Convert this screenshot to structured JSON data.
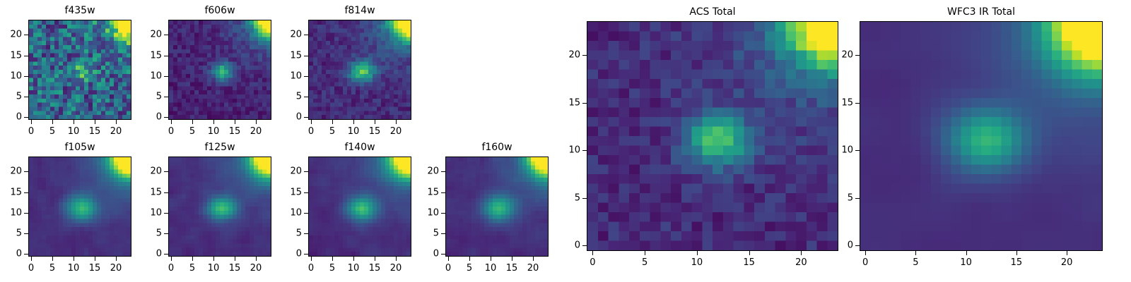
{
  "chart_data": {
    "type": "heatmap",
    "colormap": "viridis",
    "grid_size": 24,
    "x_range": [
      -0.5,
      23.5
    ],
    "y_range": [
      -0.5,
      23.5
    ],
    "x_ticks": [
      0,
      5,
      10,
      15,
      20
    ],
    "y_ticks": [
      0,
      5,
      10,
      15,
      20
    ],
    "source_center": {
      "x": 12,
      "y": 11
    },
    "corner_source": {
      "x": 23,
      "y": 23
    },
    "description": "HST galaxy cutout stamps: central compact source at (12,11) plus bright neighbor in the top-right corner, shown in seven filters and two summed (Total) images",
    "panels": [
      {
        "title": "f435w",
        "seed": 11,
        "base": 0.33,
        "noise": 0.26,
        "smooth": 0,
        "source": {
          "amp": 0.3,
          "sx": 2.0,
          "sy": 1.7
        },
        "corner": {
          "amp": 1.25,
          "sigma": 2.8
        },
        "halo": {
          "amp": 0.15,
          "sigma": 7.0
        }
      },
      {
        "title": "f606w",
        "seed": 22,
        "base": 0.1,
        "noise": 0.08,
        "smooth": 0,
        "source": {
          "amp": 0.58,
          "sx": 1.7,
          "sy": 1.5
        },
        "corner": {
          "amp": 1.15,
          "sigma": 2.7
        },
        "halo": {
          "amp": 0.2,
          "sigma": 7.0
        }
      },
      {
        "title": "f814w",
        "seed": 33,
        "base": 0.12,
        "noise": 0.08,
        "smooth": 0,
        "source": {
          "amp": 0.62,
          "sx": 2.1,
          "sy": 1.8
        },
        "corner": {
          "amp": 1.25,
          "sigma": 3.0
        },
        "halo": {
          "amp": 0.22,
          "sigma": 7.5
        }
      },
      {
        "title": "f105w",
        "seed": 44,
        "base": 0.13,
        "noise": 0.07,
        "smooth": 1,
        "source": {
          "amp": 0.52,
          "sx": 2.6,
          "sy": 2.2
        },
        "corner": {
          "amp": 1.2,
          "sigma": 3.3
        },
        "halo": {
          "amp": 0.24,
          "sigma": 8.0
        }
      },
      {
        "title": "f125w",
        "seed": 55,
        "base": 0.13,
        "noise": 0.07,
        "smooth": 1,
        "source": {
          "amp": 0.55,
          "sx": 2.4,
          "sy": 2.0
        },
        "corner": {
          "amp": 1.2,
          "sigma": 3.2
        },
        "halo": {
          "amp": 0.24,
          "sigma": 8.0
        }
      },
      {
        "title": "f140w",
        "seed": 66,
        "base": 0.13,
        "noise": 0.07,
        "smooth": 1,
        "source": {
          "amp": 0.55,
          "sx": 2.5,
          "sy": 2.1
        },
        "corner": {
          "amp": 1.2,
          "sigma": 3.3
        },
        "halo": {
          "amp": 0.24,
          "sigma": 8.0
        }
      },
      {
        "title": "f160w",
        "seed": 77,
        "base": 0.13,
        "noise": 0.07,
        "smooth": 1,
        "source": {
          "amp": 0.52,
          "sx": 2.6,
          "sy": 2.2
        },
        "corner": {
          "amp": 1.15,
          "sigma": 3.2
        },
        "halo": {
          "amp": 0.22,
          "sigma": 8.0
        }
      },
      {
        "title": "ACS Total",
        "seed": 88,
        "base": 0.12,
        "noise": 0.08,
        "smooth": 0,
        "source": {
          "amp": 0.62,
          "sx": 2.2,
          "sy": 1.9
        },
        "corner": {
          "amp": 1.25,
          "sigma": 3.0
        },
        "halo": {
          "amp": 0.22,
          "sigma": 7.5
        }
      },
      {
        "title": "WFC3 IR Total",
        "seed": 99,
        "base": 0.13,
        "noise": 0.05,
        "smooth": 2,
        "source": {
          "amp": 0.52,
          "sx": 2.7,
          "sy": 2.3
        },
        "corner": {
          "amp": 1.2,
          "sigma": 3.5
        },
        "halo": {
          "amp": 0.24,
          "sigma": 8.0
        }
      }
    ],
    "viridis_stops": [
      [
        68,
        1,
        84
      ],
      [
        72,
        36,
        117
      ],
      [
        65,
        68,
        135
      ],
      [
        53,
        95,
        141
      ],
      [
        42,
        120,
        142
      ],
      [
        33,
        145,
        140
      ],
      [
        34,
        168,
        132
      ],
      [
        68,
        190,
        112
      ],
      [
        122,
        209,
        81
      ],
      [
        189,
        223,
        38
      ],
      [
        253,
        231,
        37
      ]
    ]
  }
}
